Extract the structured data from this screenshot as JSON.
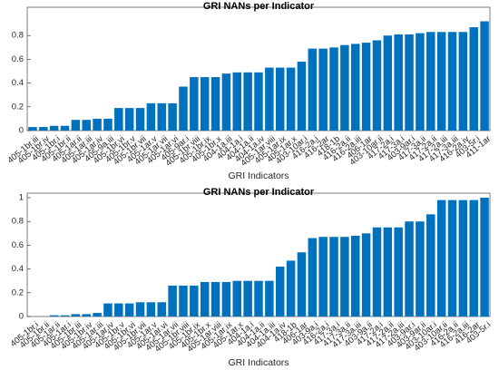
{
  "chart_data": [
    {
      "type": "bar",
      "title": "GRI NANs per Indicator",
      "x_label": "GRI Indicators",
      "color": "#0072bd",
      "categories": [
        "405-1br.iii",
        "405-1br.iv",
        "405-1br.i",
        "405-1br.ii",
        "405-1ar.ii",
        "405-1ar.iii",
        "405-1ar.iv",
        "405-9a.iii",
        "405-1br.vi",
        "405-1br.v",
        "405-1br.vii",
        "405-1ar.v",
        "405-1ar.vii",
        "405-1ar.vi",
        "405-9ar.i",
        "405-1br.viii",
        "405-1br.ix",
        "405-1br.x",
        "404-1a.iii",
        "404-1a.i",
        "404-1a.ii",
        "404-1a.iv",
        "405-1ar.viii",
        "405-1ar.ix",
        "405-1ar.x",
        "403-10ar.i",
        "416-2a.i",
        "416-2ar",
        "418-1b",
        "416-2a.ii",
        "416-2a.iii",
        "406-1ar",
        "403-10ar.ii",
        "417-2a.i",
        "417-3a.i",
        "403-9ar.i",
        "417-3a.ii",
        "417-2a.ii",
        "417-2a.iii",
        "417-3a.iii",
        "416-2a.iv",
        "403-5r.i",
        "411-1ar"
      ],
      "values": [
        0.03,
        0.03,
        0.04,
        0.04,
        0.09,
        0.09,
        0.1,
        0.1,
        0.19,
        0.19,
        0.19,
        0.23,
        0.23,
        0.23,
        0.37,
        0.45,
        0.45,
        0.45,
        0.48,
        0.49,
        0.49,
        0.49,
        0.53,
        0.53,
        0.53,
        0.58,
        0.69,
        0.69,
        0.7,
        0.72,
        0.73,
        0.74,
        0.76,
        0.8,
        0.81,
        0.81,
        0.82,
        0.83,
        0.83,
        0.83,
        0.83,
        0.87,
        0.92
      ],
      "ylim": [
        0,
        1
      ],
      "yticks": [
        0,
        0.2,
        0.4,
        0.6,
        0.8
      ],
      "grid": false
    },
    {
      "type": "bar",
      "title": "GRI NANs per Indicator",
      "x_label": "GRI Indicators",
      "color": "#0072bd",
      "categories": [
        "405-1br.i",
        "405-1br.ii",
        "405-1ar.ii",
        "405-1ar.i",
        "405-1br.iii",
        "405-1br.iv",
        "405-1ar.iii",
        "405-1ar.iv",
        "405-1br.v",
        "405-1br.vi",
        "405-1br.vii",
        "405-1ar.v",
        "405-1ar.vi",
        "405-1ar.vii",
        "405-1br.viii",
        "405-1br.ix",
        "405-1br.x",
        "405-1ar.viii",
        "405-1ar.ix",
        "405-1ar.x",
        "404-1a.i",
        "404-1a.ii",
        "404-1a.iii",
        "404-1a.iv",
        "418-1b",
        "406-1ar",
        "403-9a.i",
        "416-2a.i",
        "417-3a.i",
        "417-3a.ii",
        "417-3a.iii",
        "403-9a.ii",
        "417-2a.i",
        "417-2a.ii",
        "417-2a.iii",
        "403-9ar.i",
        "403-9ar.ii",
        "403-10ar.i",
        "403-10ar.ii",
        "416-2a.ii",
        "416-2a.iii",
        "416-2ar",
        "403-5r.i"
      ],
      "values": [
        0,
        0,
        0.01,
        0.01,
        0.02,
        0.02,
        0.03,
        0.11,
        0.11,
        0.11,
        0.12,
        0.12,
        0.12,
        0.26,
        0.26,
        0.26,
        0.29,
        0.29,
        0.29,
        0.3,
        0.3,
        0.3,
        0.3,
        0.42,
        0.47,
        0.54,
        0.66,
        0.67,
        0.67,
        0.67,
        0.68,
        0.7,
        0.75,
        0.75,
        0.75,
        0.8,
        0.8,
        0.86,
        0.98,
        0.98,
        0.98,
        0.98,
        1.0
      ],
      "ylim": [
        0,
        1
      ],
      "yticks": [
        0,
        0.2,
        0.4,
        0.6,
        0.8,
        1
      ],
      "grid": false
    }
  ]
}
